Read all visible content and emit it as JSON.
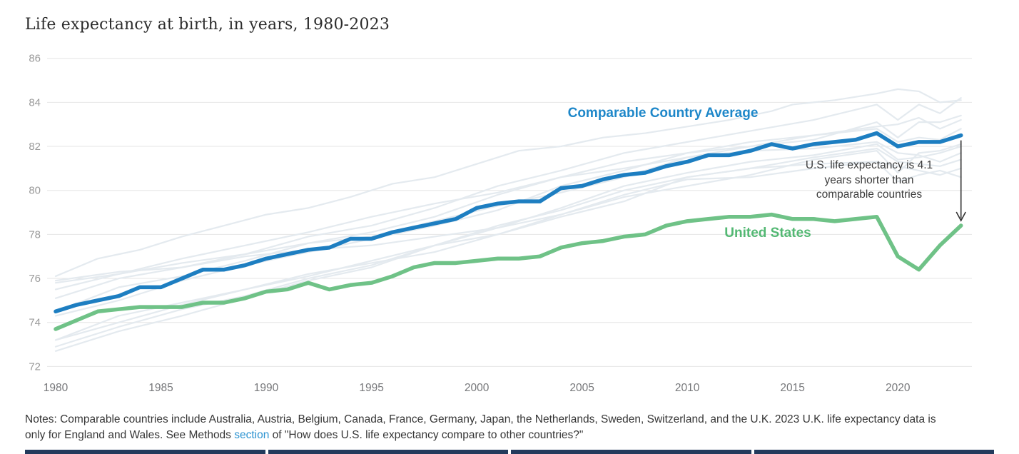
{
  "header": {
    "title": "Life expectancy at birth, in years, 1980-2023"
  },
  "chart_data": {
    "type": "line",
    "title": "Life expectancy at birth, in years, 1980-2023",
    "xlabel": "",
    "ylabel": "",
    "xlim": [
      1980,
      2023
    ],
    "ylim": [
      72,
      86
    ],
    "grid": "horizontal",
    "legend_position": "inline-labels",
    "x_ticks": [
      1980,
      1985,
      1990,
      1995,
      2000,
      2005,
      2010,
      2015,
      2020
    ],
    "y_ticks": [
      86,
      84,
      82,
      80,
      78,
      76,
      74,
      72
    ],
    "years": [
      1980,
      1981,
      1982,
      1983,
      1984,
      1985,
      1986,
      1987,
      1988,
      1989,
      1990,
      1991,
      1992,
      1993,
      1994,
      1995,
      1996,
      1997,
      1998,
      1999,
      2000,
      2001,
      2002,
      2003,
      2004,
      2005,
      2006,
      2007,
      2008,
      2009,
      2010,
      2011,
      2012,
      2013,
      2014,
      2015,
      2016,
      2017,
      2018,
      2019,
      2020,
      2021,
      2022,
      2023
    ],
    "series": [
      {
        "name": "Comparable Country Average",
        "color": "#1d7ec1",
        "label_color": "#1e87c9",
        "values": [
          74.5,
          74.8,
          75.0,
          75.2,
          75.6,
          75.6,
          76.0,
          76.4,
          76.4,
          76.6,
          76.9,
          77.1,
          77.3,
          77.4,
          77.8,
          77.8,
          78.1,
          78.3,
          78.5,
          78.7,
          79.2,
          79.4,
          79.5,
          79.5,
          80.1,
          80.2,
          80.5,
          80.7,
          80.8,
          81.1,
          81.3,
          81.6,
          81.6,
          81.8,
          82.1,
          81.9,
          82.1,
          82.2,
          82.3,
          82.6,
          82.0,
          82.2,
          82.2,
          82.5
        ]
      },
      {
        "name": "United States",
        "color": "#6fc287",
        "label_color": "#53b873",
        "values": [
          73.7,
          74.1,
          74.5,
          74.6,
          74.7,
          74.7,
          74.7,
          74.9,
          74.9,
          75.1,
          75.4,
          75.5,
          75.8,
          75.5,
          75.7,
          75.8,
          76.1,
          76.5,
          76.7,
          76.7,
          76.8,
          76.9,
          76.9,
          77.0,
          77.4,
          77.6,
          77.7,
          77.9,
          78.0,
          78.4,
          78.6,
          78.7,
          78.8,
          78.8,
          78.9,
          78.7,
          78.7,
          78.6,
          78.7,
          78.8,
          77.0,
          76.4,
          77.5,
          78.4
        ]
      }
    ],
    "background_series_color": "#e4eaef",
    "background_series": [
      {
        "name": "Japan",
        "points": [
          [
            1980,
            76.1
          ],
          [
            1982,
            76.9
          ],
          [
            1984,
            77.3
          ],
          [
            1986,
            77.9
          ],
          [
            1988,
            78.4
          ],
          [
            1990,
            78.9
          ],
          [
            1992,
            79.2
          ],
          [
            1994,
            79.7
          ],
          [
            1996,
            80.3
          ],
          [
            1998,
            80.6
          ],
          [
            2000,
            81.2
          ],
          [
            2002,
            81.8
          ],
          [
            2004,
            82.0
          ],
          [
            2006,
            82.4
          ],
          [
            2008,
            82.6
          ],
          [
            2010,
            82.9
          ],
          [
            2012,
            83.2
          ],
          [
            2014,
            83.6
          ],
          [
            2015,
            83.9
          ],
          [
            2017,
            84.1
          ],
          [
            2019,
            84.4
          ],
          [
            2020,
            84.6
          ],
          [
            2021,
            84.5
          ],
          [
            2022,
            84.0
          ],
          [
            2023,
            84.1
          ]
        ]
      },
      {
        "name": "Switzerland",
        "points": [
          [
            1980,
            75.5
          ],
          [
            1983,
            76.2
          ],
          [
            1986,
            76.7
          ],
          [
            1989,
            77.1
          ],
          [
            1992,
            77.9
          ],
          [
            1995,
            78.4
          ],
          [
            1998,
            79.2
          ],
          [
            2001,
            80.2
          ],
          [
            2004,
            80.9
          ],
          [
            2007,
            81.7
          ],
          [
            2010,
            82.2
          ],
          [
            2013,
            82.7
          ],
          [
            2016,
            83.2
          ],
          [
            2019,
            83.9
          ],
          [
            2020,
            83.2
          ],
          [
            2021,
            83.9
          ],
          [
            2022,
            83.5
          ],
          [
            2023,
            84.2
          ]
        ]
      },
      {
        "name": "Sweden",
        "points": [
          [
            1980,
            75.8
          ],
          [
            1983,
            76.2
          ],
          [
            1986,
            76.9
          ],
          [
            1989,
            77.5
          ],
          [
            1992,
            78.1
          ],
          [
            1995,
            78.8
          ],
          [
            1998,
            79.4
          ],
          [
            2001,
            79.9
          ],
          [
            2004,
            80.6
          ],
          [
            2007,
            81.0
          ],
          [
            2010,
            81.5
          ],
          [
            2013,
            82.0
          ],
          [
            2016,
            82.3
          ],
          [
            2019,
            83.1
          ],
          [
            2020,
            82.4
          ],
          [
            2021,
            83.1
          ],
          [
            2022,
            83.1
          ],
          [
            2023,
            83.4
          ]
        ]
      },
      {
        "name": "Netherlands",
        "points": [
          [
            1980,
            75.9
          ],
          [
            1983,
            76.3
          ],
          [
            1986,
            76.5
          ],
          [
            1989,
            77.0
          ],
          [
            1992,
            77.3
          ],
          [
            1995,
            77.5
          ],
          [
            1998,
            77.9
          ],
          [
            2001,
            78.3
          ],
          [
            2004,
            79.2
          ],
          [
            2007,
            80.2
          ],
          [
            2010,
            80.8
          ],
          [
            2013,
            81.3
          ],
          [
            2016,
            81.6
          ],
          [
            2019,
            82.1
          ],
          [
            2020,
            81.4
          ],
          [
            2021,
            81.5
          ],
          [
            2022,
            81.7
          ],
          [
            2023,
            82.0
          ]
        ]
      },
      {
        "name": "France",
        "points": [
          [
            1980,
            74.3
          ],
          [
            1983,
            75.0
          ],
          [
            1986,
            75.9
          ],
          [
            1989,
            76.6
          ],
          [
            1992,
            77.2
          ],
          [
            1995,
            77.8
          ],
          [
            1998,
            78.4
          ],
          [
            2001,
            79.1
          ],
          [
            2004,
            80.2
          ],
          [
            2007,
            80.9
          ],
          [
            2010,
            81.7
          ],
          [
            2013,
            82.0
          ],
          [
            2016,
            82.5
          ],
          [
            2019,
            82.8
          ],
          [
            2020,
            82.2
          ],
          [
            2021,
            82.4
          ],
          [
            2022,
            82.3
          ],
          [
            2023,
            82.8
          ]
        ]
      },
      {
        "name": "Canada",
        "points": [
          [
            1980,
            75.1
          ],
          [
            1983,
            76.0
          ],
          [
            1986,
            76.5
          ],
          [
            1989,
            77.1
          ],
          [
            1992,
            77.6
          ],
          [
            1995,
            77.9
          ],
          [
            1998,
            78.6
          ],
          [
            2001,
            79.3
          ],
          [
            2004,
            79.9
          ],
          [
            2007,
            80.6
          ],
          [
            2010,
            81.5
          ],
          [
            2013,
            81.8
          ],
          [
            2016,
            81.9
          ],
          [
            2019,
            82.2
          ],
          [
            2020,
            81.7
          ],
          [
            2021,
            81.6
          ],
          [
            2022,
            81.3
          ],
          [
            2023,
            81.7
          ]
        ]
      },
      {
        "name": "Australia",
        "points": [
          [
            1980,
            74.5
          ],
          [
            1983,
            75.6
          ],
          [
            1986,
            76.1
          ],
          [
            1989,
            76.8
          ],
          [
            1992,
            77.6
          ],
          [
            1995,
            78.1
          ],
          [
            1998,
            78.8
          ],
          [
            2001,
            79.8
          ],
          [
            2004,
            80.6
          ],
          [
            2007,
            81.3
          ],
          [
            2010,
            81.7
          ],
          [
            2013,
            82.2
          ],
          [
            2016,
            82.5
          ],
          [
            2019,
            82.9
          ],
          [
            2020,
            83.0
          ],
          [
            2021,
            83.3
          ],
          [
            2022,
            82.8
          ],
          [
            2023,
            83.2
          ]
        ]
      },
      {
        "name": "Austria",
        "points": [
          [
            1980,
            72.7
          ],
          [
            1983,
            73.6
          ],
          [
            1986,
            74.3
          ],
          [
            1989,
            75.1
          ],
          [
            1992,
            75.9
          ],
          [
            1995,
            76.5
          ],
          [
            1998,
            77.5
          ],
          [
            2001,
            78.4
          ],
          [
            2004,
            79.1
          ],
          [
            2007,
            80.0
          ],
          [
            2010,
            80.6
          ],
          [
            2013,
            81.0
          ],
          [
            2016,
            81.5
          ],
          [
            2019,
            81.9
          ],
          [
            2020,
            81.3
          ],
          [
            2021,
            81.2
          ],
          [
            2022,
            81.1
          ],
          [
            2023,
            81.4
          ]
        ]
      },
      {
        "name": "Belgium",
        "points": [
          [
            1980,
            73.2
          ],
          [
            1983,
            74.0
          ],
          [
            1986,
            74.8
          ],
          [
            1989,
            75.5
          ],
          [
            1992,
            76.1
          ],
          [
            1995,
            76.8
          ],
          [
            1998,
            77.5
          ],
          [
            2001,
            78.0
          ],
          [
            2004,
            78.9
          ],
          [
            2007,
            79.7
          ],
          [
            2010,
            80.2
          ],
          [
            2013,
            80.7
          ],
          [
            2016,
            81.4
          ],
          [
            2019,
            81.8
          ],
          [
            2020,
            80.8
          ],
          [
            2021,
            81.7
          ],
          [
            2022,
            81.8
          ],
          [
            2023,
            82.1
          ]
        ]
      },
      {
        "name": "Germany",
        "points": [
          [
            1980,
            72.9
          ],
          [
            1983,
            73.8
          ],
          [
            1986,
            74.6
          ],
          [
            1989,
            75.2
          ],
          [
            1992,
            76.0
          ],
          [
            1995,
            76.6
          ],
          [
            1998,
            77.5
          ],
          [
            2001,
            78.3
          ],
          [
            2004,
            78.9
          ],
          [
            2007,
            79.8
          ],
          [
            2010,
            80.5
          ],
          [
            2013,
            80.6
          ],
          [
            2016,
            81.0
          ],
          [
            2019,
            81.3
          ],
          [
            2020,
            81.1
          ],
          [
            2021,
            80.9
          ],
          [
            2022,
            80.7
          ],
          [
            2023,
            81.0
          ]
        ]
      },
      {
        "name": "United Kingdom",
        "points": [
          [
            1980,
            73.2
          ],
          [
            1983,
            74.3
          ],
          [
            1986,
            74.9
          ],
          [
            1989,
            75.5
          ],
          [
            1992,
            76.2
          ],
          [
            1995,
            76.7
          ],
          [
            1998,
            77.2
          ],
          [
            2001,
            78.0
          ],
          [
            2004,
            78.8
          ],
          [
            2007,
            79.5
          ],
          [
            2010,
            80.6
          ],
          [
            2013,
            81.0
          ],
          [
            2016,
            81.2
          ],
          [
            2019,
            81.3
          ],
          [
            2020,
            80.4
          ],
          [
            2021,
            80.7
          ],
          [
            2022,
            80.9
          ],
          [
            2023,
            80.6
          ]
        ]
      }
    ],
    "annotation": {
      "lines": [
        "U.S. life expectancy is 4.1",
        "years shorter than",
        "comparable countries"
      ],
      "arrow_year": 2023,
      "arrow_from_value": 82.5,
      "arrow_to_value": 78.4
    }
  },
  "notes": {
    "text_before": "Notes: Comparable countries include Australia, Austria, Belgium, Canada, France, Germany, Japan, the Netherlands, Sweden, Switzerland, and the U.K. 2023 U.K. life expectancy data is only for England and Wales. See Methods ",
    "link_text": "section",
    "text_after": " of \"How does U.S. life expectancy compare to other countries?\""
  }
}
